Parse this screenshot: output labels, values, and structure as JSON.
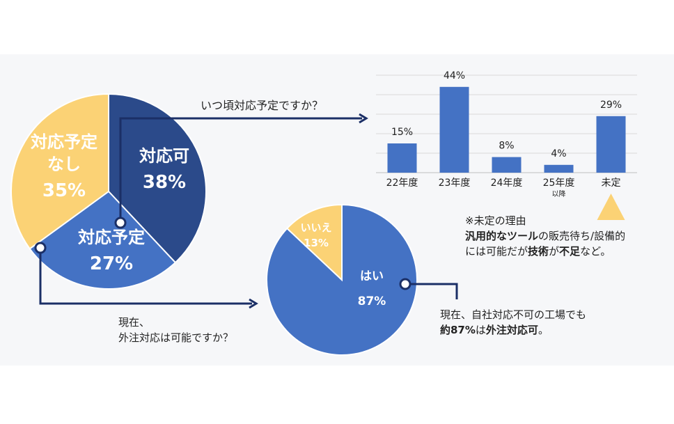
{
  "colors": {
    "dark_blue": "#2b4a8a",
    "mid_blue": "#4472c4",
    "yellow": "#fbd275",
    "navy_line": "#1b2f66",
    "text_dark": "#222222",
    "grid": "#d9d9d9"
  },
  "chart_data": [
    {
      "type": "pie",
      "slices": [
        {
          "label_lines": [
            "対応可"
          ],
          "value": 38,
          "value_label": "38%",
          "color": "#2b4a8a"
        },
        {
          "label_lines": [
            "対応予定"
          ],
          "value": 27,
          "value_label": "27%",
          "color": "#4472c4"
        },
        {
          "label_lines": [
            "対応予定",
            "なし"
          ],
          "value": 35,
          "value_label": "35%",
          "color": "#fbd275"
        }
      ]
    },
    {
      "type": "bar",
      "title": "いつ頃対応予定ですか？",
      "categories": [
        "22年度",
        "23年度",
        "24年度",
        "25年度",
        "未定"
      ],
      "category_sublabels": [
        "",
        "",
        "",
        "以降",
        ""
      ],
      "values": [
        15,
        44,
        8,
        4,
        29
      ],
      "value_labels": [
        "15%",
        "44%",
        "8%",
        "4%",
        "29%"
      ],
      "ylim": [
        0,
        50
      ],
      "grid": true,
      "bar_color": "#4472c4"
    },
    {
      "type": "pie",
      "title_lines": [
        "現在、",
        "外注対応は可能ですか？"
      ],
      "slices": [
        {
          "label_lines": [
            "はい"
          ],
          "value": 87,
          "value_label": "87%",
          "color": "#4472c4"
        },
        {
          "label_lines": [
            "いいえ"
          ],
          "value": 13,
          "value_label": "13%",
          "color": "#fbd275"
        }
      ]
    }
  ],
  "notes": {
    "reason": {
      "line1": "※未定の理由",
      "line2_bold": "汎用的なツール",
      "line2_rest": "の販売待ち/設備的",
      "line3_a": "には可能だが",
      "line3_bold1": "技術",
      "line3_b": "が",
      "line3_bold2": "不足",
      "line3_c": "など。"
    },
    "outsourcing": {
      "line1": "現在、自社対応不可の工場でも",
      "line2_bold1": "約87%",
      "line2_mid": "は",
      "line2_bold2": "外注対応可",
      "line2_end": "。"
    }
  }
}
